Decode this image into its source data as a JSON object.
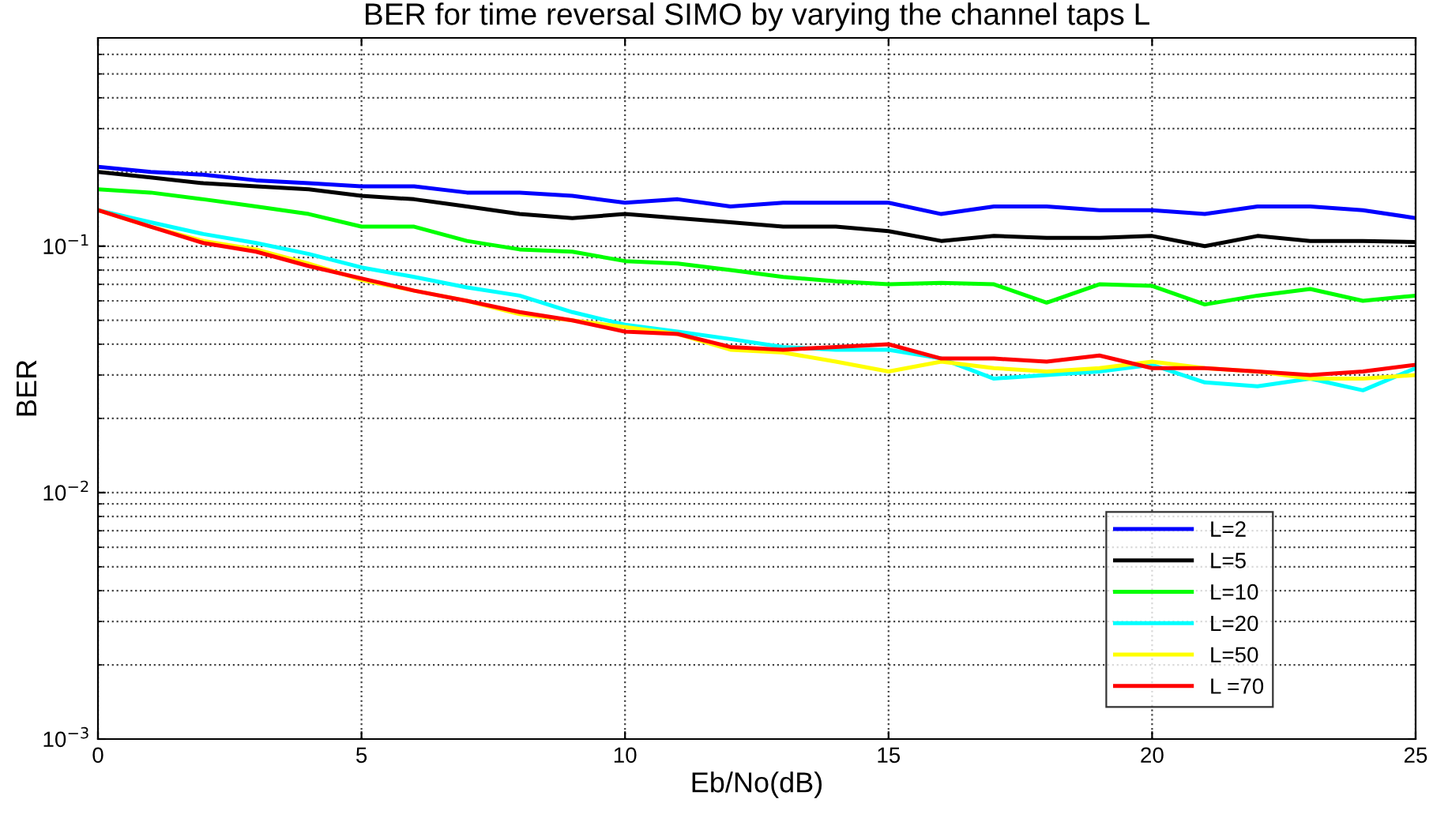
{
  "chart_data": {
    "type": "line",
    "title": "BER for time reversal SIMO by varying the channel taps L",
    "xlabel": "Eb/No(dB)",
    "ylabel": "BER",
    "x": [
      0,
      1,
      2,
      3,
      4,
      5,
      6,
      7,
      8,
      9,
      10,
      11,
      12,
      13,
      14,
      15,
      16,
      17,
      18,
      19,
      20,
      21,
      22,
      23,
      24,
      25
    ],
    "series": [
      {
        "name": "L=2",
        "color": "#0000ff",
        "values": [
          0.21,
          0.2,
          0.195,
          0.185,
          0.18,
          0.175,
          0.175,
          0.165,
          0.165,
          0.16,
          0.15,
          0.155,
          0.145,
          0.15,
          0.15,
          0.15,
          0.135,
          0.145,
          0.145,
          0.14,
          0.14,
          0.135,
          0.145,
          0.145,
          0.14,
          0.13
        ]
      },
      {
        "name": "L=5",
        "color": "#000000",
        "values": [
          0.2,
          0.19,
          0.18,
          0.175,
          0.17,
          0.16,
          0.155,
          0.145,
          0.135,
          0.13,
          0.135,
          0.13,
          0.125,
          0.12,
          0.12,
          0.115,
          0.105,
          0.11,
          0.108,
          0.108,
          0.11,
          0.1,
          0.11,
          0.105,
          0.105,
          0.104
        ]
      },
      {
        "name": "L=10",
        "color": "#00ff00",
        "values": [
          0.17,
          0.165,
          0.155,
          0.145,
          0.135,
          0.12,
          0.12,
          0.105,
          0.097,
          0.095,
          0.087,
          0.085,
          0.08,
          0.075,
          0.072,
          0.07,
          0.071,
          0.07,
          0.059,
          0.07,
          0.069,
          0.058,
          0.063,
          0.067,
          0.06,
          0.063
        ]
      },
      {
        "name": "L=20",
        "color": "#00ffff",
        "values": [
          0.14,
          0.125,
          0.112,
          0.103,
          0.093,
          0.082,
          0.075,
          0.068,
          0.063,
          0.054,
          0.048,
          0.045,
          0.042,
          0.039,
          0.038,
          0.038,
          0.035,
          0.029,
          0.03,
          0.031,
          0.033,
          0.028,
          0.027,
          0.029,
          0.026,
          0.032
        ]
      },
      {
        "name": "L=50",
        "color": "#ffff00",
        "values": [
          0.14,
          0.12,
          0.105,
          0.097,
          0.085,
          0.073,
          0.066,
          0.06,
          0.053,
          0.05,
          0.047,
          0.044,
          0.038,
          0.037,
          0.034,
          0.031,
          0.034,
          0.032,
          0.031,
          0.032,
          0.034,
          0.032,
          0.031,
          0.029,
          0.029,
          0.03
        ]
      },
      {
        "name": "L =70",
        "color": "#ff0000",
        "values": [
          0.14,
          0.12,
          0.103,
          0.095,
          0.083,
          0.074,
          0.066,
          0.06,
          0.054,
          0.05,
          0.045,
          0.044,
          0.039,
          0.038,
          0.039,
          0.04,
          0.035,
          0.035,
          0.034,
          0.036,
          0.032,
          0.032,
          0.031,
          0.03,
          0.031,
          0.033
        ]
      }
    ],
    "xlim": [
      0,
      25
    ],
    "xticks": [
      0,
      5,
      10,
      15,
      20,
      25
    ],
    "ylim": [
      0.001,
      0.7
    ],
    "yticks": [
      {
        "value": 0.001,
        "label": "10$^{−3}$"
      },
      {
        "value": 0.01,
        "label": "10$^{−2}$"
      },
      {
        "value": 0.1,
        "label": "10$^{−1}$"
      }
    ],
    "log": true,
    "grid": true,
    "legend": "bottom right",
    "line_style": "solid",
    "marker": "none"
  }
}
